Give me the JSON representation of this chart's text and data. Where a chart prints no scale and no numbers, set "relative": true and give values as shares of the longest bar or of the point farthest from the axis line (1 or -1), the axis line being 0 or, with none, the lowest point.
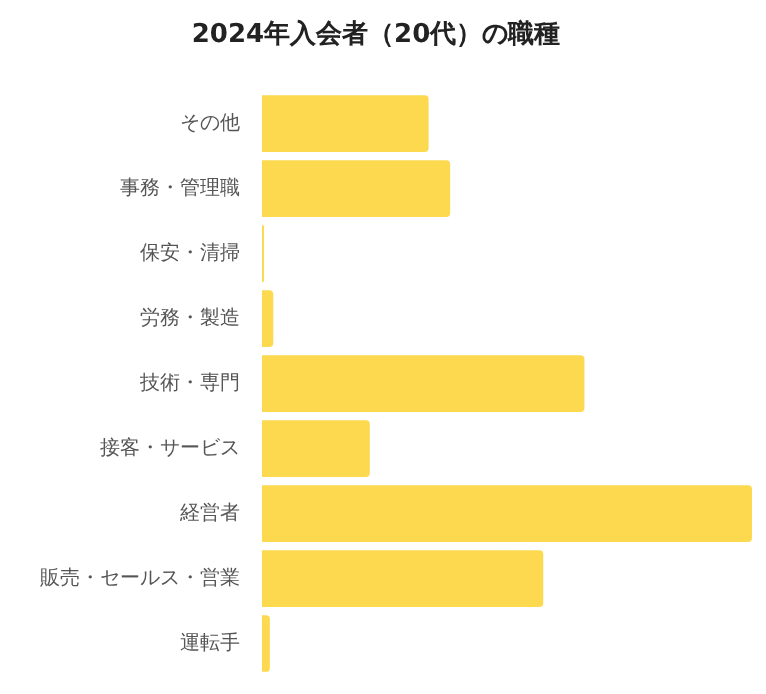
{
  "chart_data": {
    "type": "bar",
    "orientation": "horizontal",
    "relative": true,
    "title": "2024年入会者（20代）の職種",
    "categories": [
      "その他",
      "事務・管理職",
      "保安・清掃",
      "労務・製造",
      "技術・専門",
      "接客・サービス",
      "経営者",
      "販売・セールス・営業",
      "運転手"
    ],
    "values": [
      0.34,
      0.384,
      0.004,
      0.023,
      0.658,
      0.22,
      1,
      0.574,
      0.016
    ],
    "color": "#fcd94f",
    "grid": false,
    "legend": false
  }
}
